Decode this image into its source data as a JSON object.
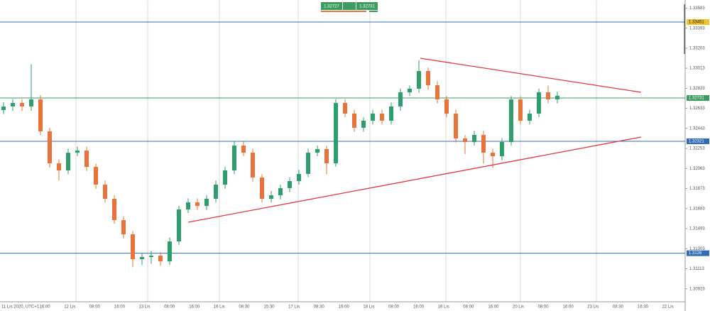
{
  "chart_data": {
    "type": "candlestick",
    "bid": "1.32727",
    "ask": "1.32731",
    "up_color": "#2e9e6e",
    "down_color": "#e8743b",
    "ylim": [
      1.308,
      1.3366
    ],
    "yticks": [
      1.33583,
      1.33393,
      1.33203,
      1.33013,
      1.32823,
      1.32633,
      1.32443,
      1.32253,
      1.32063,
      1.31873,
      1.31683,
      1.31493,
      1.31303,
      1.31113,
      1.30923
    ],
    "xlabels": [
      "11 Lis 2020, UTC+1",
      "16:00",
      "12 Lis",
      "08:00",
      "16:00",
      "13 Lis",
      "08:00",
      "16:00",
      "16 Lis",
      "08:30",
      "15:30",
      "17 Lis",
      "08:30",
      "16:00",
      "18 Lis",
      "08:00",
      "16:00",
      "19 Lis",
      "08:00",
      "16:00",
      "20 Lis",
      "08:00",
      "16:00",
      "23 Lis",
      "08:30",
      "16:30",
      "22 Lis"
    ],
    "levels": {
      "values": [
        1.33451,
        1.32731,
        1.32321,
        1.3126
      ],
      "colors": [
        "#2f6db5",
        "#3a9d5d",
        "#2f6db5",
        "#2f6db5"
      ],
      "label_colors": [
        "#f2c12e",
        "#3a9d5d",
        "#2f6db5",
        "#2f6db5"
      ]
    },
    "candles": [
      [
        1.32617,
        1.3269,
        1.3258,
        1.32651
      ],
      [
        1.32651,
        1.3272,
        1.3261,
        1.32684
      ],
      [
        1.32684,
        1.3272,
        1.3261,
        1.32651
      ],
      [
        1.32651,
        1.3305,
        1.3261,
        1.32718
      ],
      [
        1.32718,
        1.3276,
        1.3238,
        1.32415
      ],
      [
        1.32415,
        1.3245,
        1.3207,
        1.32112
      ],
      [
        1.32112,
        1.3215,
        1.3195,
        1.32045
      ],
      [
        1.32045,
        1.3225,
        1.3201,
        1.32213
      ],
      [
        1.32213,
        1.3227,
        1.3218,
        1.32233
      ],
      [
        1.32233,
        1.3227,
        1.3204,
        1.32078
      ],
      [
        1.32078,
        1.3211,
        1.3187,
        1.3191
      ],
      [
        1.3191,
        1.3195,
        1.3174,
        1.31776
      ],
      [
        1.31776,
        1.3181,
        1.3154,
        1.31574
      ],
      [
        1.31574,
        1.3161,
        1.314,
        1.31439
      ],
      [
        1.31439,
        1.3147,
        1.3113,
        1.31204
      ],
      [
        1.31204,
        1.3126,
        1.3115,
        1.31224
      ],
      [
        1.31224,
        1.3128,
        1.3116,
        1.31237
      ],
      [
        1.31237,
        1.3127,
        1.3114,
        1.31183
      ],
      [
        1.31183,
        1.3141,
        1.3115,
        1.31372
      ],
      [
        1.31372,
        1.3171,
        1.3134,
        1.31675
      ],
      [
        1.31675,
        1.3178,
        1.3164,
        1.31742
      ],
      [
        1.31742,
        1.3178,
        1.3167,
        1.31708
      ],
      [
        1.31708,
        1.3181,
        1.3167,
        1.31776
      ],
      [
        1.31776,
        1.3195,
        1.3174,
        1.3191
      ],
      [
        1.3191,
        1.3208,
        1.3187,
        1.32045
      ],
      [
        1.32045,
        1.3232,
        1.3201,
        1.3228
      ],
      [
        1.3228,
        1.3232,
        1.3218,
        1.32213
      ],
      [
        1.32213,
        1.3225,
        1.3194,
        1.31978
      ],
      [
        1.31978,
        1.3201,
        1.3174,
        1.31776
      ],
      [
        1.31776,
        1.3185,
        1.3174,
        1.31809
      ],
      [
        1.31809,
        1.3191,
        1.3177,
        1.31877
      ],
      [
        1.31877,
        1.3198,
        1.3184,
        1.31944
      ],
      [
        1.31944,
        1.3205,
        1.3191,
        1.32011
      ],
      [
        1.32011,
        1.3225,
        1.3198,
        1.32213
      ],
      [
        1.32213,
        1.3228,
        1.3218,
        1.32247
      ],
      [
        1.32247,
        1.3228,
        1.3201,
        1.32112
      ],
      [
        1.32112,
        1.3272,
        1.3208,
        1.32684
      ],
      [
        1.32684,
        1.3272,
        1.3255,
        1.32583
      ],
      [
        1.32583,
        1.3262,
        1.3241,
        1.32449
      ],
      [
        1.32449,
        1.3255,
        1.3241,
        1.32516
      ],
      [
        1.32516,
        1.3262,
        1.3248,
        1.32583
      ],
      [
        1.32583,
        1.3262,
        1.3248,
        1.32516
      ],
      [
        1.32516,
        1.3269,
        1.3248,
        1.32651
      ],
      [
        1.32651,
        1.3282,
        1.3261,
        1.32785
      ],
      [
        1.32785,
        1.3285,
        1.3275,
        1.32819
      ],
      [
        1.32819,
        1.3309,
        1.3278,
        1.32987
      ],
      [
        1.32987,
        1.3302,
        1.3281,
        1.32852
      ],
      [
        1.32852,
        1.3289,
        1.3268,
        1.32718
      ],
      [
        1.32718,
        1.3275,
        1.3255,
        1.32583
      ],
      [
        1.32583,
        1.3262,
        1.3231,
        1.32348
      ],
      [
        1.32348,
        1.3238,
        1.322,
        1.32314
      ],
      [
        1.32314,
        1.3242,
        1.3228,
        1.32381
      ],
      [
        1.32381,
        1.3242,
        1.3211,
        1.32213
      ],
      [
        1.32213,
        1.3225,
        1.3207,
        1.32179
      ],
      [
        1.32179,
        1.3235,
        1.3214,
        1.32314
      ],
      [
        1.32314,
        1.3275,
        1.3228,
        1.32718
      ],
      [
        1.32718,
        1.3275,
        1.3248,
        1.32516
      ],
      [
        1.32516,
        1.3262,
        1.3248,
        1.32583
      ],
      [
        1.32583,
        1.3282,
        1.3255,
        1.32785
      ],
      [
        1.32785,
        1.3285,
        1.3268,
        1.32718
      ],
      [
        1.32718,
        1.3279,
        1.3268,
        1.32752
      ]
    ]
  }
}
